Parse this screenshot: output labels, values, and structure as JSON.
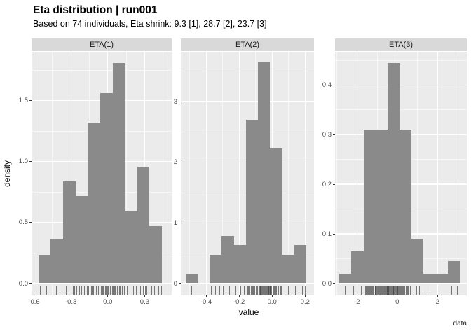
{
  "header": {
    "title": "Eta distribution | run001",
    "subtitle": "Based on 74 individuals, Eta shrink: 9.3 [1], 28.7 [2], 23.7 [3]"
  },
  "axis": {
    "x_label": "value",
    "y_label": "density"
  },
  "caption": "data",
  "colors": {
    "bar": "#8A8A8A",
    "panel_bg": "#EBEBEB",
    "strip_bg": "#D9D9D9",
    "grid_major": "#FFFFFF",
    "grid_minor": "rgba(255,255,255,0.55)",
    "tick_label": "#4D4D4D",
    "rug": "rgba(55,55,55,0.65)"
  },
  "chart_data": [
    {
      "type": "bar",
      "subtype": "histogram-density",
      "panel": "ETA(1)",
      "xlabel": "value",
      "ylabel": "density",
      "x_range": [
        -0.62,
        0.52
      ],
      "y_range": [
        0,
        1.9
      ],
      "x_ticks": [
        -0.6,
        -0.3,
        0.0,
        0.3
      ],
      "x_tick_labels": [
        "-0.6",
        "-0.3",
        "0.0",
        "0.3"
      ],
      "y_ticks": [
        0.0,
        0.5,
        1.0,
        1.5
      ],
      "y_tick_labels": [
        "0.0",
        "0.5",
        "1.0",
        "1.5"
      ],
      "bin_start": -0.565,
      "bin_width": 0.1006,
      "values": [
        0.23,
        0.36,
        0.84,
        0.72,
        1.32,
        1.56,
        1.81,
        0.59,
        0.96,
        0.47
      ],
      "rug": [
        -0.55,
        -0.5,
        -0.45,
        -0.42,
        -0.39,
        -0.36,
        -0.34,
        -0.32,
        -0.3,
        -0.285,
        -0.27,
        -0.255,
        -0.235,
        -0.215,
        -0.195,
        -0.17,
        -0.158,
        -0.148,
        -0.138,
        -0.128,
        -0.118,
        -0.108,
        -0.098,
        -0.088,
        -0.078,
        -0.068,
        -0.055,
        -0.047,
        -0.039,
        -0.031,
        -0.023,
        -0.015,
        -0.007,
        0.001,
        0.009,
        0.017,
        0.025,
        0.033,
        0.042,
        0.05,
        0.058,
        0.066,
        0.074,
        0.082,
        0.09,
        0.098,
        0.106,
        0.114,
        0.122,
        0.13,
        0.138,
        0.155,
        0.18,
        0.205,
        0.23,
        0.25,
        0.263,
        0.276,
        0.289,
        0.302,
        0.315,
        0.33,
        0.355,
        0.38,
        0.41,
        0.435
      ]
    },
    {
      "type": "bar",
      "subtype": "histogram-density",
      "panel": "ETA(2)",
      "xlabel": "value",
      "ylabel": "density",
      "x_range": [
        -0.553,
        0.254
      ],
      "y_range": [
        0,
        3.82
      ],
      "x_ticks": [
        -0.4,
        -0.2,
        0.0,
        0.2
      ],
      "x_tick_labels": [
        "-0.4",
        "-0.2",
        "0.0",
        "0.2"
      ],
      "y_ticks": [
        0,
        1,
        2,
        3
      ],
      "y_tick_labels": [
        "0",
        "1",
        "2",
        "3"
      ],
      "bin_start": -0.524,
      "bin_width": 0.0731,
      "values": [
        0.15,
        0,
        0.47,
        0.78,
        0.63,
        2.7,
        3.66,
        2.23,
        0.47,
        0.64
      ],
      "rug": [
        -0.49,
        -0.37,
        -0.345,
        -0.32,
        -0.3,
        -0.28,
        -0.26,
        -0.24,
        -0.22,
        -0.19,
        -0.17,
        -0.155,
        -0.15,
        -0.145,
        -0.14,
        -0.135,
        -0.13,
        -0.125,
        -0.12,
        -0.115,
        -0.11,
        -0.105,
        -0.1,
        -0.095,
        -0.09,
        -0.083,
        -0.079,
        -0.075,
        -0.071,
        -0.067,
        -0.063,
        -0.059,
        -0.055,
        -0.051,
        -0.047,
        -0.043,
        -0.039,
        -0.035,
        -0.031,
        -0.027,
        -0.023,
        -0.02,
        -0.017,
        -0.015,
        -0.013,
        -0.01,
        -0.004,
        0.002,
        0.008,
        0.014,
        0.02,
        0.026,
        0.032,
        0.038,
        0.044,
        0.05,
        0.056,
        0.075,
        0.095,
        0.12,
        0.14,
        0.16,
        0.18,
        0.2
      ]
    },
    {
      "type": "bar",
      "subtype": "histogram-density",
      "panel": "ETA(3)",
      "xlabel": "value",
      "ylabel": "density",
      "x_range": [
        -3.09,
        3.45
      ],
      "y_range": [
        0,
        0.467
      ],
      "x_ticks": [
        -2,
        0,
        2
      ],
      "x_tick_labels": [
        "-2",
        "0",
        "2"
      ],
      "y_ticks": [
        0.0,
        0.1,
        0.2,
        0.3,
        0.4
      ],
      "y_tick_labels": [
        "0.0",
        "0.1",
        "0.2",
        "0.3",
        "0.4"
      ],
      "bin_start": -2.87,
      "bin_width": 0.597,
      "values": [
        0.02,
        0.065,
        0.31,
        0.31,
        0.445,
        0.31,
        0.09,
        0.02,
        0.02,
        0.045
      ],
      "rug": [
        -2.6,
        -2.2,
        -2.0,
        -1.8,
        -1.65,
        -1.6,
        -1.55,
        -1.5,
        -1.45,
        -1.4,
        -1.35,
        -1.3,
        -1.28,
        -1.24,
        -1.2,
        -1.16,
        -1.12,
        -1.1,
        -1.05,
        -1.0,
        -0.95,
        -0.9,
        -0.85,
        -0.8,
        -0.76,
        -0.72,
        -0.68,
        -0.64,
        -0.6,
        -0.56,
        -0.52,
        -0.5,
        -0.46,
        -0.43,
        -0.4,
        -0.37,
        -0.34,
        -0.31,
        -0.28,
        -0.25,
        -0.22,
        -0.19,
        -0.16,
        -0.13,
        -0.1,
        -0.07,
        -0.04,
        -0.01,
        0.02,
        0.05,
        0.08,
        0.1,
        0.13,
        0.17,
        0.21,
        0.25,
        0.29,
        0.33,
        0.37,
        0.41,
        0.45,
        0.49,
        0.53,
        0.57,
        0.62,
        0.68,
        0.8,
        0.95,
        1.1,
        1.25,
        1.6,
        2.2,
        2.7,
        2.95
      ]
    }
  ]
}
